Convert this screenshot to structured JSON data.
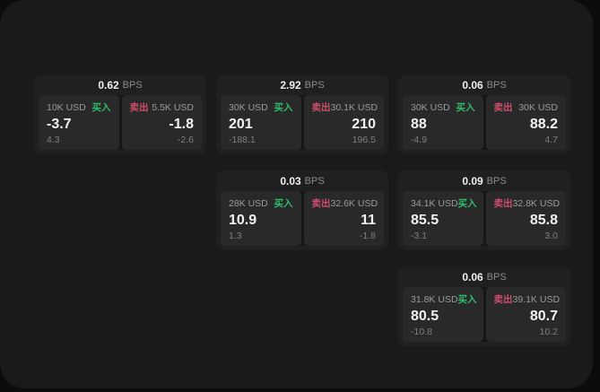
{
  "labels": {
    "bps": "BPS",
    "buy": "买入",
    "sell": "卖出"
  },
  "colors": {
    "panel_bg": "#1a1a1b",
    "card_bg": "#202021",
    "tile_bg": "#29292a",
    "buy_green": "#2fbd68",
    "sell_red": "#cf4d6e"
  },
  "cards": [
    {
      "bps": "0.62",
      "bid": {
        "size": "10K USD",
        "price": "-3.7",
        "change": "4.3"
      },
      "ask": {
        "size": "5.5K USD",
        "price": "-1.8",
        "change": "-2.6"
      }
    },
    {
      "bps": "2.92",
      "bid": {
        "size": "30K USD",
        "price": "201",
        "change": "-188.1"
      },
      "ask": {
        "size": "30.1K USD",
        "price": "210",
        "change": "196.5"
      }
    },
    {
      "bps": "0.06",
      "bid": {
        "size": "30K USD",
        "price": "88",
        "change": "-4.9"
      },
      "ask": {
        "size": "30K USD",
        "price": "88.2",
        "change": "4.7"
      }
    },
    {
      "bps": "0.03",
      "bid": {
        "size": "28K USD",
        "price": "10.9",
        "change": "1.3"
      },
      "ask": {
        "size": "32.6K USD",
        "price": "11",
        "change": "-1.8"
      }
    },
    {
      "bps": "0.09",
      "bid": {
        "size": "34.1K USD",
        "price": "85.5",
        "change": "-3.1"
      },
      "ask": {
        "size": "32.8K USD",
        "price": "85.8",
        "change": "3.0"
      }
    },
    {
      "bps": "0.06",
      "bid": {
        "size": "31.8K USD",
        "price": "80.5",
        "change": "-10.8"
      },
      "ask": {
        "size": "39.1K USD",
        "price": "80.7",
        "change": "10.2"
      }
    }
  ]
}
